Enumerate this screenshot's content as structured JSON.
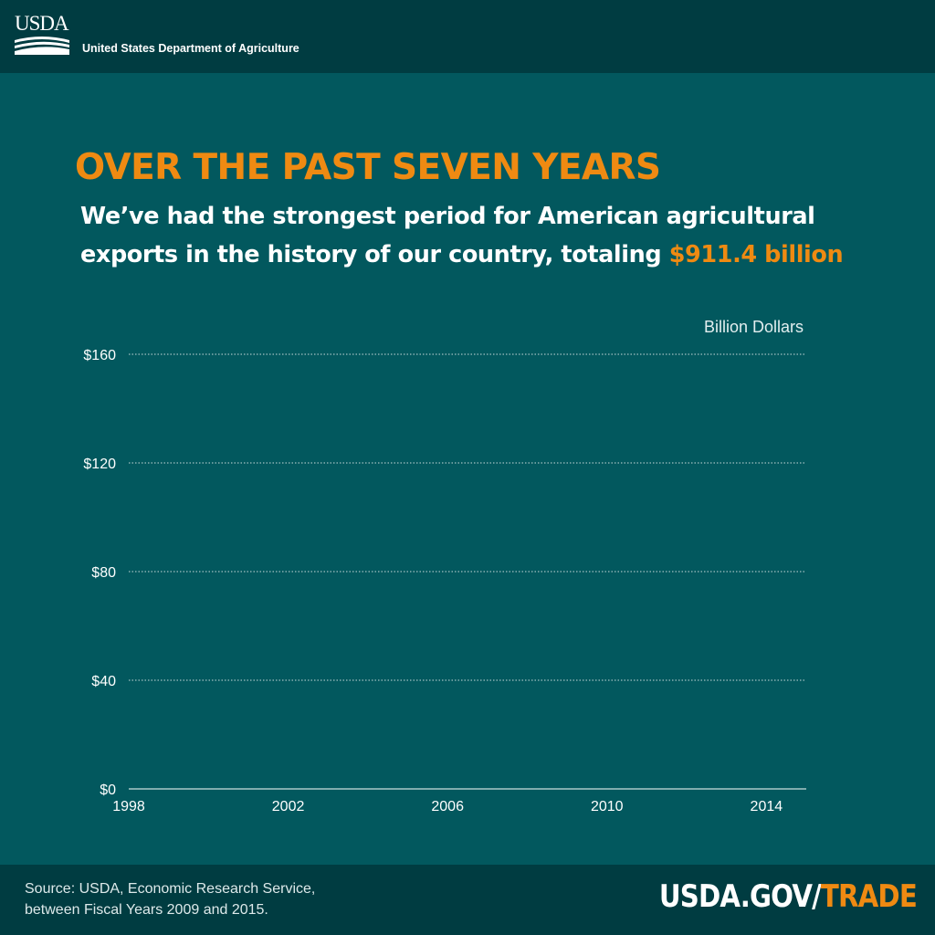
{
  "header": {
    "logo_text": "USDA",
    "department": "United States Department of Agriculture"
  },
  "headline": "OVER THE PAST SEVEN YEARS",
  "subhead": {
    "text": "We’ve had the strongest period for American agricultural exports in the history of our country, totaling",
    "amount": "$911.4 billion"
  },
  "colors": {
    "background": "#02585e",
    "bar": "#003c41",
    "accent": "#ef8a12"
  },
  "chart_data": {
    "type": "line",
    "title": "",
    "xlabel": "",
    "ylabel": "Billion Dollars",
    "xlim": [
      1998,
      2015
    ],
    "ylim": [
      0,
      160
    ],
    "x_ticks": [
      1998,
      2002,
      2006,
      2010,
      2014
    ],
    "y_ticks": [
      0,
      40,
      80,
      120,
      160
    ],
    "y_tick_labels": [
      "$0",
      "$40",
      "$80",
      "$120",
      "$160"
    ],
    "grid": "horizontal dotted",
    "series": []
  },
  "footer": {
    "source_line1": "Source: USDA, Economic Research Service,",
    "source_line2": "between Fiscal Years 2009 and 2015.",
    "url_main": "USDA.GOV/",
    "url_accent": "TRADE"
  }
}
